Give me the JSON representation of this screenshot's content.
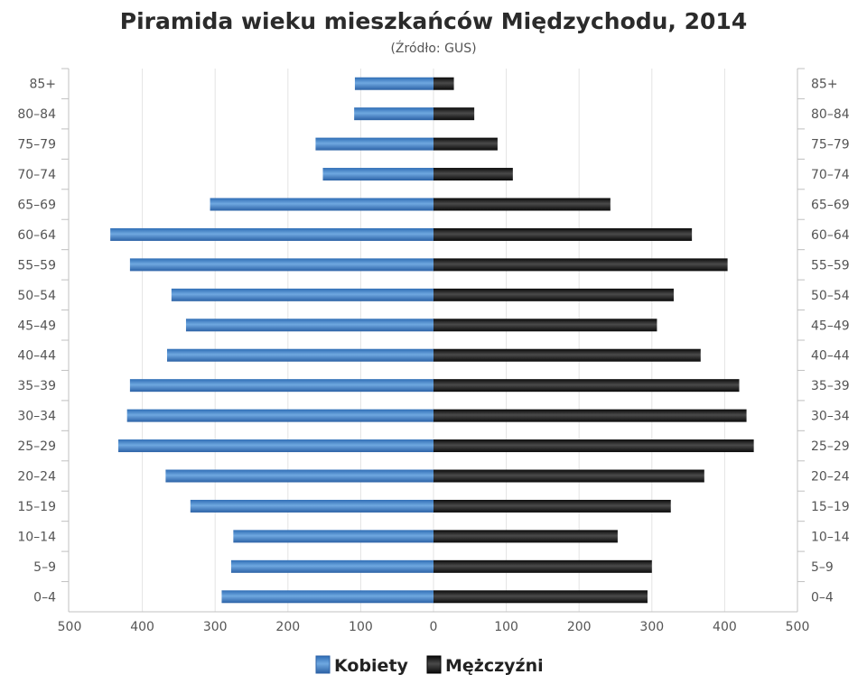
{
  "chart_data": {
    "type": "bar",
    "orientation": "horizontal-population-pyramid",
    "title": "Piramida wieku mieszkańców Międzychodu, 2014",
    "subtitle": "(Źródło: GUS)",
    "categories": [
      "85+",
      "80–84",
      "75–79",
      "70–74",
      "65–69",
      "60–64",
      "55–59",
      "50–54",
      "45–49",
      "40–44",
      "35–39",
      "30–34",
      "25–29",
      "20–24",
      "15–19",
      "10–14",
      "5–9",
      "0–4"
    ],
    "series": [
      {
        "name": "Kobiety",
        "color": "#3f7fc4",
        "side": "left",
        "values": [
          108,
          109,
          162,
          152,
          307,
          444,
          417,
          360,
          340,
          366,
          417,
          421,
          433,
          368,
          334,
          275,
          278,
          291
        ]
      },
      {
        "name": "Mężczyźni",
        "color": "#1a1a1a",
        "side": "right",
        "values": [
          28,
          56,
          88,
          109,
          243,
          355,
          404,
          330,
          307,
          367,
          420,
          430,
          440,
          372,
          326,
          253,
          300,
          294
        ]
      }
    ],
    "xlim": [
      -500,
      500
    ],
    "xticks": [
      "500",
      "400",
      "300",
      "200",
      "100",
      "0",
      "100",
      "200",
      "300",
      "400",
      "500"
    ],
    "grid": true,
    "legend": "bottom"
  }
}
